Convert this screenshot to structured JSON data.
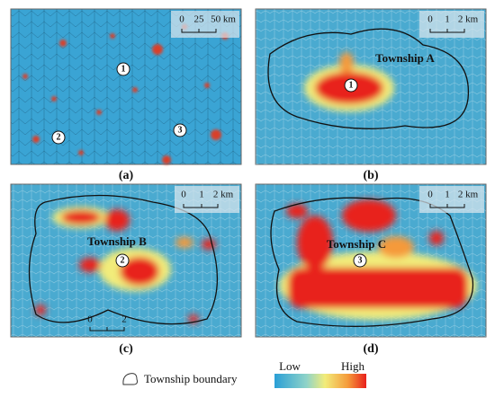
{
  "panels": [
    {
      "caption": "(a)",
      "scale": [
        "0",
        "25",
        "50 km"
      ],
      "markers": [
        "1",
        "2",
        "3"
      ]
    },
    {
      "caption": "(b)",
      "scale": [
        "0",
        "1",
        "2 km"
      ],
      "township": "Township A",
      "markers": [
        "1"
      ]
    },
    {
      "caption": "(c)",
      "scale": [
        "0",
        "1",
        "2 km"
      ],
      "scale2": [
        "0",
        "2"
      ],
      "township": "Township B",
      "markers": [
        "2"
      ]
    },
    {
      "caption": "(d)",
      "scale": [
        "0",
        "1",
        "2 km"
      ],
      "township": "Township C",
      "markers": [
        "3"
      ]
    }
  ],
  "legend": {
    "boundary": "Township boundary",
    "low": "Low",
    "high": "High"
  }
}
